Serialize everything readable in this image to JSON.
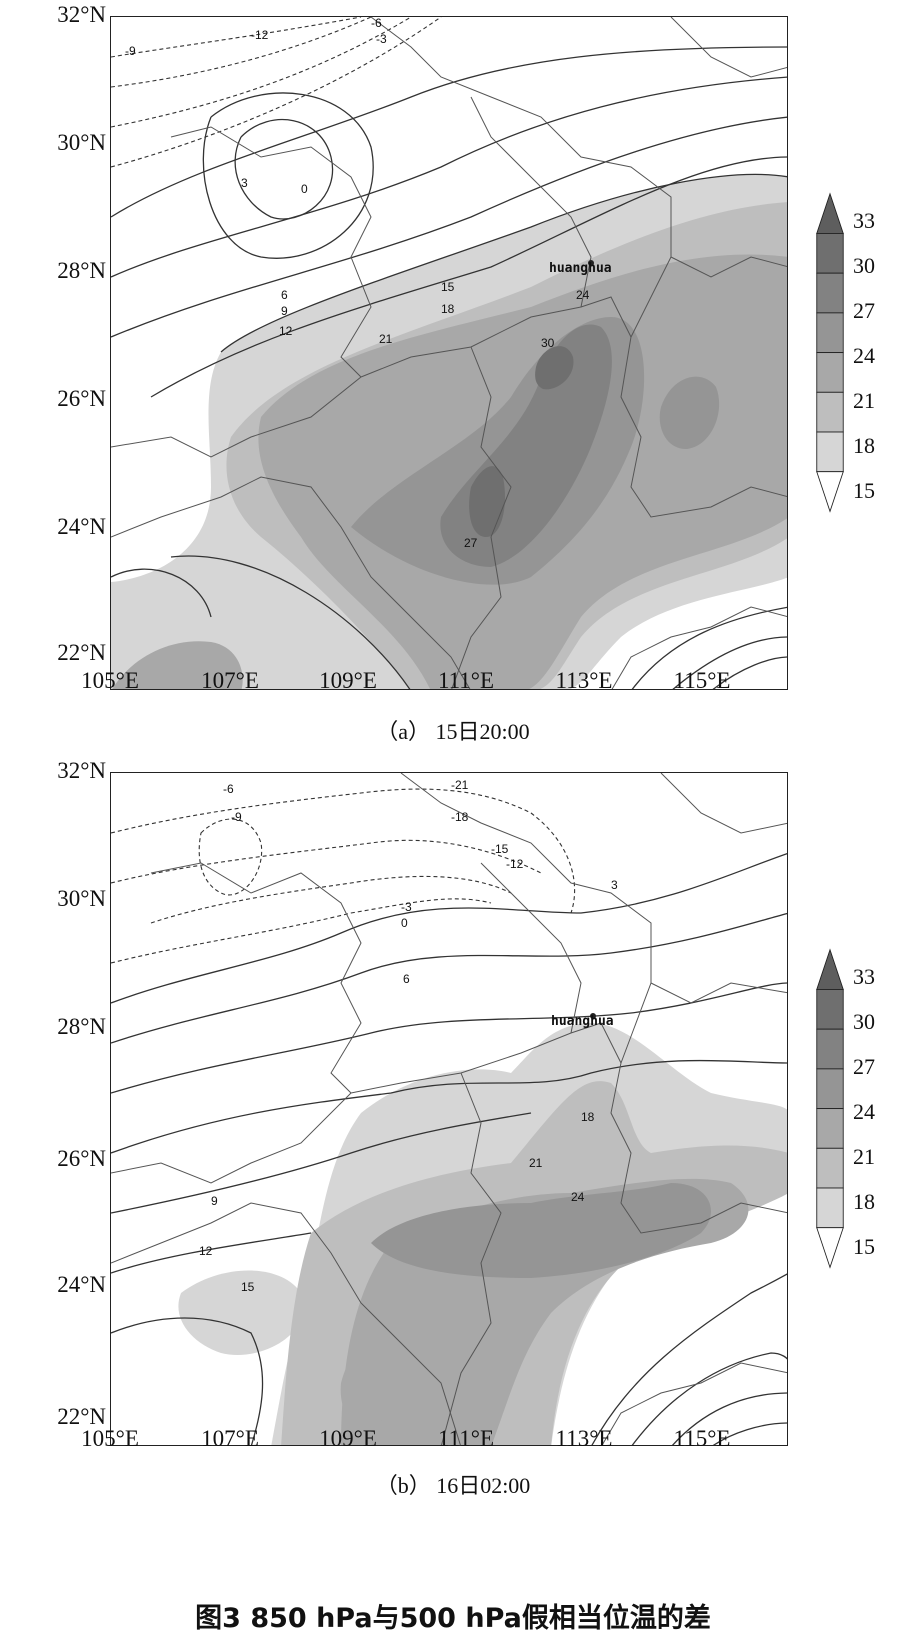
{
  "panels": [
    {
      "caption": "（a） 15日20:00",
      "station": "huanghua",
      "lat_labels": [
        "32°N",
        "30°N",
        "28°N",
        "26°N",
        "24°N",
        "22°N"
      ],
      "lon_labels": [
        "105°E",
        "107°E",
        "109°E",
        "111°E",
        "113°E",
        "115°E"
      ],
      "contour_labels": [
        "-12",
        "-9",
        "-6",
        "-3",
        "0",
        "3",
        "6",
        "9",
        "12",
        "15",
        "18",
        "21",
        "24",
        "27",
        "30"
      ]
    },
    {
      "caption": "（b） 16日02:00",
      "station": "huanghua",
      "lat_labels": [
        "32°N",
        "30°N",
        "28°N",
        "26°N",
        "24°N",
        "22°N"
      ],
      "lon_labels": [
        "105°E",
        "107°E",
        "109°E",
        "111°E",
        "113°E",
        "115°E"
      ],
      "contour_labels": [
        "-21",
        "-18",
        "-15",
        "-12",
        "-9",
        "-6",
        "-3",
        "0",
        "3",
        "6",
        "9",
        "12",
        "15",
        "18",
        "21",
        "24"
      ]
    }
  ],
  "colorbar": {
    "levels": [
      "33",
      "30",
      "27",
      "24",
      "21",
      "18",
      "15"
    ],
    "colors": [
      "#6f6f6f",
      "#828282",
      "#959595",
      "#a8a8a8",
      "#bebebe",
      "#d6d6d6",
      "#ffffff"
    ]
  },
  "figure_title": "图3 850 hPa与500 hPa假相当位温的差"
}
